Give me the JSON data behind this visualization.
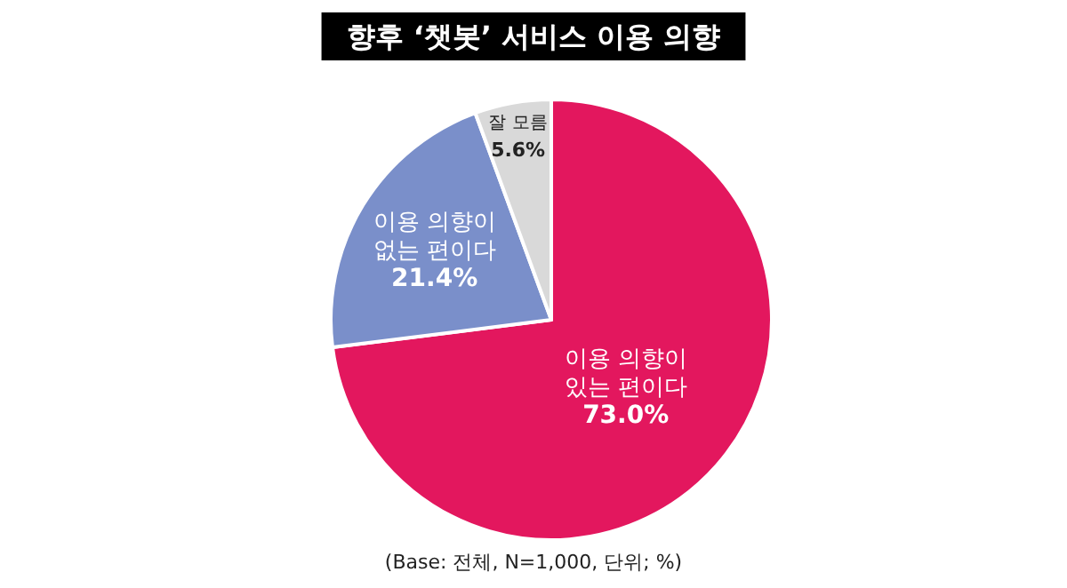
{
  "chart_data": {
    "type": "pie",
    "title": "향후 ‘챗봇’ 서비스 이용 의향",
    "categories": [
      "이용 의향이\n있는 편이다",
      "이용 의향이\n없는 편이다",
      "잘 모름"
    ],
    "values": [
      73.0,
      21.4,
      5.6
    ],
    "colors": [
      "#e3175e",
      "#7a8fca",
      "#d9d9d9"
    ],
    "value_labels": [
      "73.0%",
      "21.4%",
      "5.6%"
    ],
    "annotations": [
      "(Base: 전체, N=1,000, 단위; %)"
    ]
  }
}
